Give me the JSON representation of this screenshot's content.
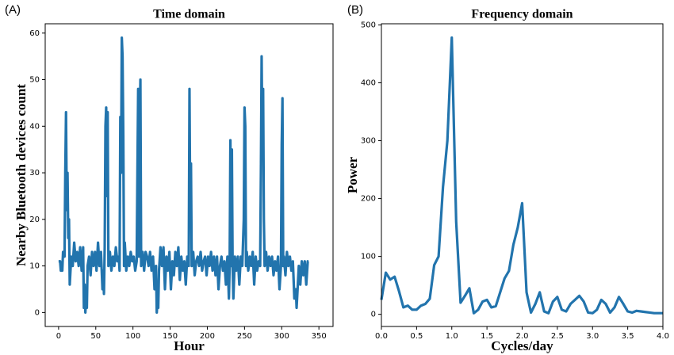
{
  "chart_data": [
    {
      "type": "line",
      "panel_label": "(A)",
      "title": "Time domain",
      "x_label": "Hour",
      "y_label": "Nearby Bluetooth devices count",
      "xlim": [
        -18,
        369
      ],
      "ylim": [
        -3,
        62
      ],
      "xticks": [
        0,
        50,
        100,
        150,
        200,
        250,
        300,
        350
      ],
      "yticks": [
        0,
        10,
        20,
        30,
        40,
        50,
        60
      ],
      "series": [
        {
          "color": "#2274ad",
          "x": [
            0,
            2,
            3,
            5,
            6,
            8,
            9,
            10,
            11,
            12,
            13,
            14,
            15,
            17,
            19,
            21,
            23,
            25,
            27,
            29,
            31,
            33,
            34,
            35,
            36,
            37,
            38,
            39,
            41,
            43,
            45,
            47,
            49,
            51,
            53,
            55,
            57,
            59,
            60,
            61,
            62,
            63,
            64,
            65,
            66,
            67,
            69,
            71,
            73,
            75,
            77,
            79,
            81,
            82,
            83,
            84,
            85,
            86,
            87,
            88,
            89,
            91,
            93,
            95,
            97,
            99,
            101,
            103,
            105,
            106,
            107,
            108,
            109,
            110,
            111,
            113,
            115,
            117,
            119,
            121,
            123,
            125,
            127,
            129,
            131,
            132,
            133,
            134,
            135,
            137,
            139,
            141,
            143,
            145,
            147,
            149,
            151,
            153,
            155,
            157,
            159,
            161,
            163,
            165,
            167,
            169,
            171,
            173,
            175,
            176,
            177,
            178,
            179,
            181,
            183,
            185,
            187,
            189,
            191,
            193,
            195,
            197,
            199,
            201,
            203,
            205,
            207,
            209,
            211,
            213,
            215,
            217,
            219,
            221,
            223,
            225,
            227,
            229,
            230,
            231,
            232,
            233,
            234,
            235,
            237,
            239,
            241,
            243,
            245,
            247,
            249,
            250,
            251,
            252,
            253,
            255,
            257,
            259,
            261,
            263,
            265,
            267,
            269,
            271,
            272,
            273,
            274,
            275,
            276,
            277,
            279,
            281,
            283,
            285,
            287,
            289,
            291,
            293,
            295,
            297,
            299,
            300,
            301,
            302,
            303,
            305,
            307,
            309,
            311,
            313,
            315,
            317,
            319,
            320,
            321,
            323,
            325,
            327,
            329,
            331,
            333,
            335,
            336
          ],
          "values": [
            11,
            11,
            9,
            9,
            13,
            12,
            30,
            43,
            22,
            30,
            16,
            20,
            6,
            12,
            10,
            15,
            11,
            13,
            10,
            14,
            9,
            14,
            1,
            6,
            0,
            3,
            1,
            10,
            12,
            8,
            13,
            10,
            13,
            9,
            15,
            10,
            13,
            5,
            9,
            4,
            14,
            40,
            44,
            25,
            43,
            10,
            13,
            9,
            12,
            10,
            14,
            11,
            12,
            9,
            42,
            30,
            59,
            55,
            38,
            10,
            15,
            9,
            12,
            10,
            13,
            11,
            12,
            9,
            11,
            30,
            48,
            12,
            40,
            50,
            10,
            13,
            9,
            13,
            12,
            10,
            13,
            9,
            12,
            5,
            10,
            0,
            3,
            1,
            9,
            14,
            10,
            14,
            5,
            12,
            9,
            13,
            5,
            11,
            8,
            13,
            10,
            14,
            7,
            12,
            9,
            11,
            6,
            12,
            10,
            48,
            20,
            32,
            10,
            13,
            8,
            11,
            12,
            10,
            13,
            9,
            11,
            12,
            8,
            12,
            10,
            13,
            9,
            12,
            8,
            12,
            5,
            10,
            12,
            9,
            11,
            6,
            12,
            3,
            10,
            37,
            10,
            35,
            10,
            3,
            12,
            9,
            12,
            6,
            12,
            10,
            20,
            44,
            40,
            10,
            13,
            9,
            12,
            10,
            13,
            6,
            12,
            9,
            11,
            10,
            30,
            55,
            36,
            48,
            20,
            10,
            13,
            9,
            12,
            10,
            12,
            8,
            11,
            9,
            12,
            5,
            10,
            36,
            46,
            10,
            12,
            8,
            13,
            10,
            12,
            9,
            11,
            3,
            5,
            1,
            4,
            10,
            6,
            11,
            8,
            11,
            6,
            11,
            11
          ]
        }
      ]
    },
    {
      "type": "line",
      "panel_label": "(B)",
      "title": "Frequency domain",
      "x_label": "Cycles/day",
      "y_label": "Power",
      "xlim": [
        0,
        4
      ],
      "ylim": [
        -21,
        502
      ],
      "xticks": [
        {
          "value": 0,
          "label": "0.0"
        },
        {
          "value": 0.5,
          "label": "0.5"
        },
        {
          "value": 1,
          "label": "1.0"
        },
        {
          "value": 1.5,
          "label": "1.5"
        },
        {
          "value": 2,
          "label": "2.0"
        },
        {
          "value": 2.5,
          "label": "2.5"
        },
        {
          "value": 3,
          "label": "3.0"
        },
        {
          "value": 3.5,
          "label": "3.5"
        },
        {
          "value": 4,
          "label": "4.0"
        }
      ],
      "yticks": [
        0,
        100,
        200,
        300,
        400,
        500
      ],
      "series": [
        {
          "color": "#2274ad",
          "x": [
            0,
            0.0625,
            0.125,
            0.1875,
            0.25,
            0.3125,
            0.375,
            0.4375,
            0.5,
            0.5625,
            0.625,
            0.6875,
            0.75,
            0.8125,
            0.875,
            0.9375,
            1,
            1.0625,
            1.125,
            1.1875,
            1.25,
            1.3125,
            1.375,
            1.4375,
            1.5,
            1.5625,
            1.625,
            1.6875,
            1.75,
            1.8125,
            1.875,
            1.9375,
            2,
            2.0625,
            2.125,
            2.1875,
            2.25,
            2.3125,
            2.375,
            2.4375,
            2.5,
            2.5625,
            2.625,
            2.6875,
            2.75,
            2.8125,
            2.875,
            2.9375,
            3,
            3.0625,
            3.125,
            3.1875,
            3.25,
            3.3125,
            3.375,
            3.4375,
            3.5,
            3.5625,
            3.625,
            3.6875,
            3.75,
            3.8125,
            3.875,
            3.9375,
            4
          ],
          "values": [
            25,
            72,
            60,
            65,
            40,
            12,
            15,
            8,
            8,
            15,
            18,
            27,
            85,
            100,
            220,
            300,
            478,
            160,
            20,
            32,
            45,
            2,
            8,
            22,
            25,
            12,
            14,
            38,
            62,
            75,
            120,
            150,
            192,
            38,
            3,
            18,
            38,
            5,
            2,
            22,
            30,
            8,
            5,
            18,
            25,
            32,
            22,
            3,
            2,
            8,
            25,
            18,
            3,
            12,
            30,
            18,
            5,
            3,
            6,
            5,
            4,
            3,
            2,
            2,
            2
          ]
        }
      ]
    }
  ]
}
